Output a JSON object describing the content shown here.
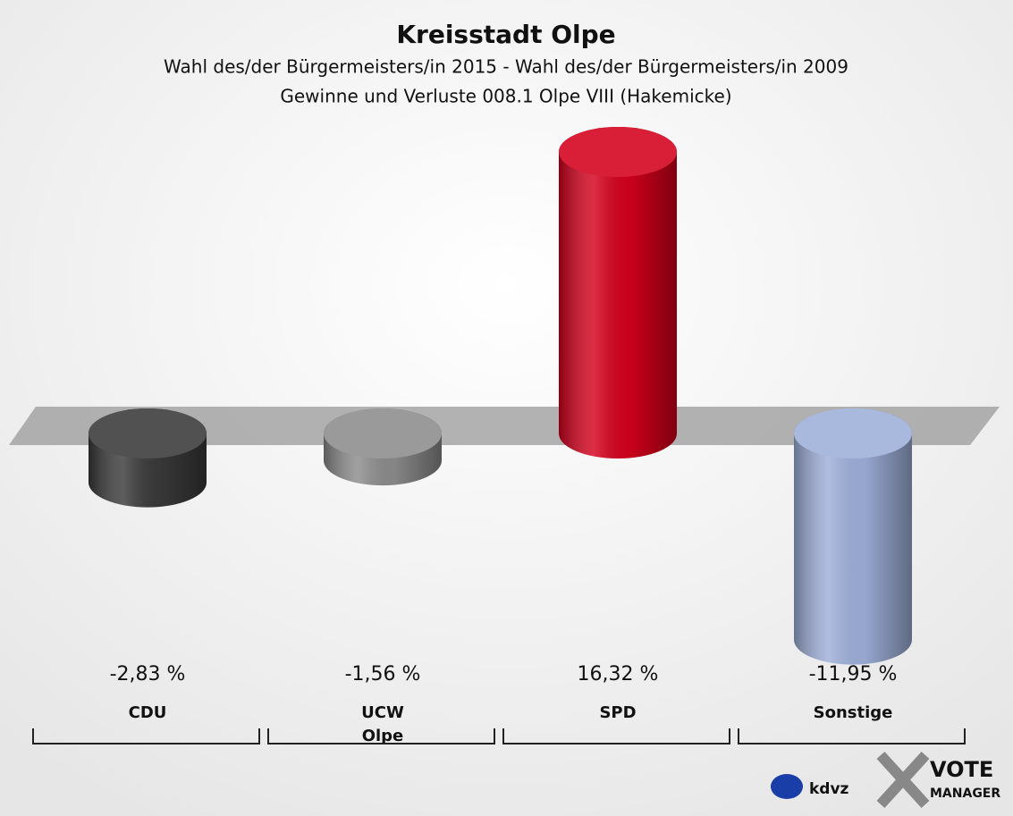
{
  "chart_data": {
    "type": "bar",
    "title": "Kreisstadt Olpe",
    "subtitle": [
      "Wahl des/der Bürgermeisters/in 2015 - Wahl des/der Bürgermeisters/in 2009",
      "Gewinne und Verluste 008.1 Olpe VIII (Hakemicke)"
    ],
    "categories": [
      "CDU",
      "UCW\nOlpe",
      "SPD",
      "Sonstige"
    ],
    "values": [
      -2.83,
      -1.56,
      16.32,
      -11.95
    ],
    "value_labels": [
      "-2,83 %",
      "-1,56 %",
      "16,32 %",
      "-11,95 %"
    ],
    "colors": [
      "#3a3a3a",
      "#8c8c8c",
      "#d4001c",
      "#9eafd9"
    ]
  },
  "logo": {
    "left": "kdvz",
    "right": [
      "VOTE",
      "MANAGER"
    ]
  }
}
